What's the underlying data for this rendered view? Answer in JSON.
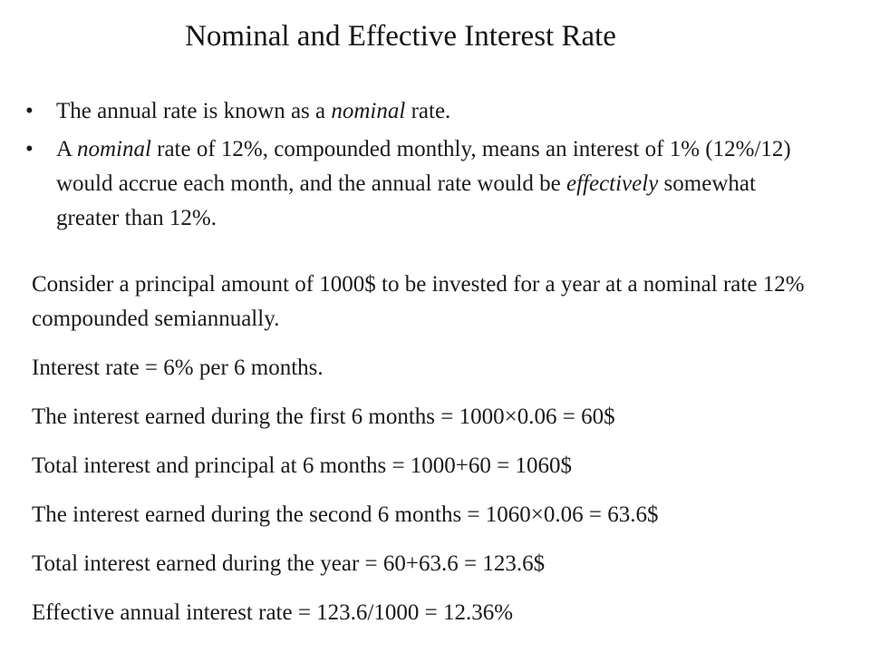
{
  "slide": {
    "title": "Nominal and Effective Interest Rate",
    "bullets": [
      {
        "prefix": "The annual rate is known as a ",
        "italic": "nominal",
        "suffix": " rate."
      },
      {
        "prefix": "A ",
        "italic": "nominal",
        "middle": " rate of 12%, compounded monthly, means an interest of 1% (12%/12) would accrue each month, and the annual rate would be ",
        "italic2": "effectively",
        "suffix": " somewhat greater than 12%."
      }
    ],
    "example_lines": [
      "Consider a principal amount of 1000$ to be invested for a year at a nominal rate 12% compounded semiannually.",
      "Interest rate = 6% per 6 months.",
      "The interest earned during the first 6 months = 1000×0.06 = 60$",
      "Total interest and principal at 6 months = 1000+60 = 1060$",
      "The interest earned during the second 6 months = 1060×0.06 = 63.6$",
      "Total interest earned during the year = 60+63.6 = 123.6$",
      "Effective annual interest rate = 123.6/1000 = 12.36%"
    ],
    "bullet_symbol": "•"
  }
}
